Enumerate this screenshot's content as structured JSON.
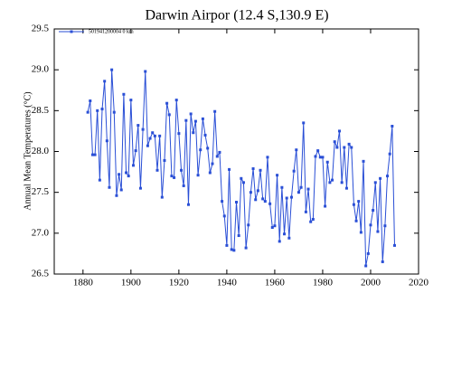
{
  "chart_data": {
    "type": "line",
    "title": "Darwin Airpor (12.4 S,130.9 E)",
    "ylabel": "Annual Mean Temperatures (°C)",
    "x": [
      1882,
      1883,
      1884,
      1885,
      1886,
      1887,
      1888,
      1889,
      1890,
      1891,
      1892,
      1893,
      1894,
      1895,
      1896,
      1897,
      1898,
      1899,
      1900,
      1901,
      1902,
      1903,
      1904,
      1905,
      1906,
      1907,
      1908,
      1909,
      1910,
      1911,
      1912,
      1913,
      1914,
      1915,
      1916,
      1917,
      1918,
      1919,
      1920,
      1921,
      1922,
      1923,
      1924,
      1925,
      1926,
      1927,
      1928,
      1929,
      1930,
      1931,
      1932,
      1933,
      1934,
      1935,
      1936,
      1937,
      1938,
      1939,
      1940,
      1941,
      1942,
      1943,
      1944,
      1945,
      1946,
      1947,
      1948,
      1949,
      1950,
      1951,
      1952,
      1953,
      1954,
      1955,
      1956,
      1957,
      1958,
      1959,
      1960,
      1961,
      1962,
      1963,
      1964,
      1965,
      1966,
      1967,
      1968,
      1969,
      1970,
      1971,
      1972,
      1973,
      1974,
      1975,
      1976,
      1977,
      1978,
      1979,
      1980,
      1981,
      1982,
      1983,
      1984,
      1985,
      1986,
      1987,
      1988,
      1989,
      1990,
      1991,
      1992,
      1993,
      1994,
      1995,
      1996,
      1997,
      1998,
      1999,
      2000,
      2001,
      2002,
      2003,
      2004,
      2005,
      2006,
      2007,
      2008,
      2009,
      2010
    ],
    "series": [
      {
        "name": "501941200004 0 km",
        "color": "#2a4fd6",
        "values": [
          28.48,
          28.62,
          27.96,
          27.96,
          28.5,
          27.65,
          28.52,
          28.86,
          28.13,
          27.56,
          29.0,
          28.48,
          27.46,
          27.72,
          27.53,
          28.7,
          27.74,
          27.7,
          28.63,
          27.83,
          28.01,
          28.32,
          27.55,
          28.27,
          28.98,
          28.07,
          28.16,
          28.23,
          28.19,
          27.77,
          28.19,
          27.44,
          27.89,
          28.59,
          28.45,
          27.7,
          27.68,
          28.63,
          28.22,
          27.77,
          27.58,
          28.38,
          27.35,
          28.46,
          28.23,
          28.37,
          27.71,
          28.02,
          28.4,
          28.2,
          28.04,
          27.74,
          27.85,
          28.49,
          27.94,
          27.99,
          27.39,
          27.21,
          26.85,
          27.78,
          26.8,
          26.79,
          27.38,
          26.97,
          27.67,
          27.62,
          26.82,
          27.1,
          27.5,
          27.79,
          27.41,
          27.52,
          27.77,
          27.42,
          27.39,
          27.93,
          27.36,
          27.07,
          27.09,
          27.71,
          26.9,
          27.56,
          26.99,
          27.43,
          26.94,
          27.44,
          27.76,
          28.02,
          27.5,
          27.56,
          28.35,
          27.26,
          27.54,
          27.14,
          27.17,
          27.94,
          28.01,
          27.93,
          27.93,
          27.33,
          27.87,
          27.62,
          27.65,
          28.12,
          28.05,
          28.25,
          27.62,
          28.05,
          27.55,
          28.09,
          28.05,
          27.35,
          27.15,
          27.39,
          27.01,
          27.88,
          26.6,
          26.75,
          27.1,
          27.28,
          27.62,
          27.02,
          27.67,
          26.65,
          27.09,
          27.7,
          27.97,
          28.31,
          26.85
        ]
      }
    ],
    "xlim": [
      1868,
      2020
    ],
    "ylim": [
      26.5,
      29.5
    ],
    "xticks": [
      1880,
      1900,
      1920,
      1940,
      1960,
      1980,
      2000,
      2020
    ],
    "yticks": [
      26.5,
      {
        "value": 27,
        "label": "27.0"
      },
      27.5,
      {
        "value": 28,
        "label": "28.0"
      },
      28.5,
      {
        "value": 29,
        "label": "29.0"
      },
      29.5
    ],
    "legend": "upper left"
  }
}
